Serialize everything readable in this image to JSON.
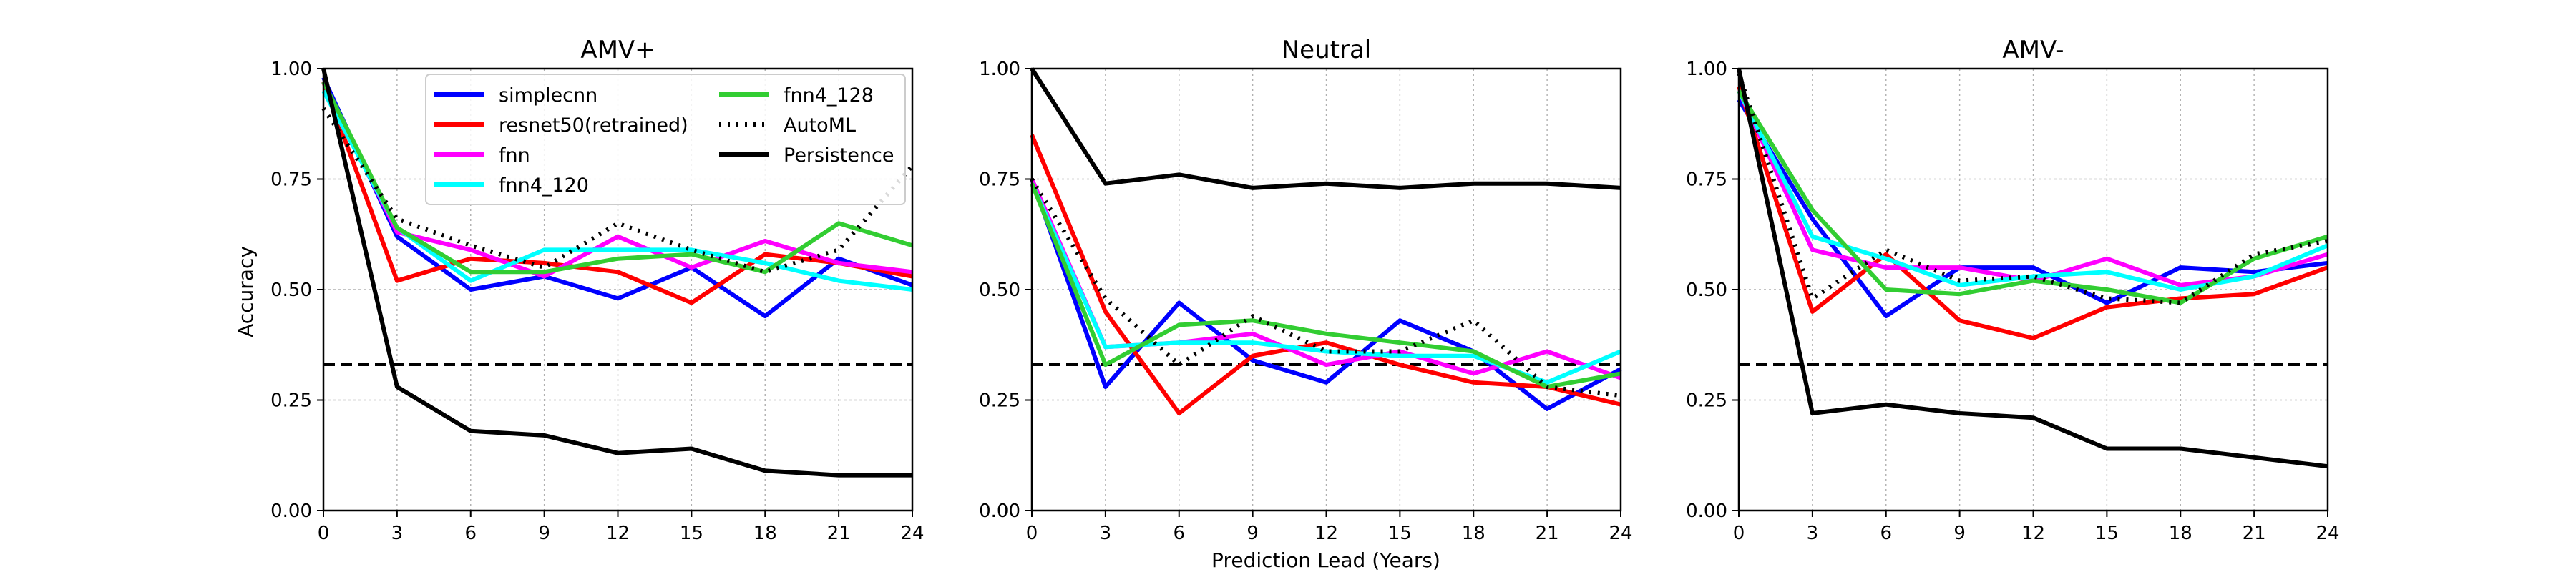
{
  "figure": {
    "xlabel": "Prediction Lead (Years)",
    "ylabel": "Accuracy"
  },
  "legend": {
    "entries": [
      "simplecnn",
      "resnet50(retrained)",
      "fnn",
      "fnn4_120",
      "fnn4_128",
      "AutoML",
      "Persistence"
    ]
  },
  "styles": {
    "simplecnn": {
      "color": "#0000ff",
      "dash": "solid"
    },
    "resnet50(retrained)": {
      "color": "#ff0000",
      "dash": "solid"
    },
    "fnn": {
      "color": "#ff00ff",
      "dash": "solid"
    },
    "fnn4_120": {
      "color": "#00ffff",
      "dash": "solid"
    },
    "fnn4_128": {
      "color": "#32cd32",
      "dash": "solid"
    },
    "AutoML": {
      "color": "#000000",
      "dash": "dotted"
    },
    "Persistence": {
      "color": "#000000",
      "dash": "solid"
    },
    "chance_line": {
      "color": "#000000",
      "dash": "dashed"
    }
  },
  "chart_data": [
    {
      "type": "line",
      "title": "AMV+",
      "xlabel": "",
      "ylabel": "Accuracy",
      "x": [
        0,
        3,
        6,
        9,
        12,
        15,
        18,
        21,
        24
      ],
      "xlim": [
        0,
        24
      ],
      "ylim": [
        0,
        1
      ],
      "xticks": [
        "0",
        "3",
        "6",
        "9",
        "12",
        "15",
        "18",
        "21",
        "24"
      ],
      "yticks": [
        "0.00",
        "0.25",
        "0.50",
        "0.75",
        "1.00"
      ],
      "grid": true,
      "legend_position": "top-center",
      "chance_level": 0.33,
      "series": [
        {
          "name": "simplecnn",
          "values": [
            0.98,
            0.62,
            0.5,
            0.53,
            0.48,
            0.55,
            0.44,
            0.57,
            0.51
          ]
        },
        {
          "name": "resnet50(retrained)",
          "values": [
            0.97,
            0.52,
            0.57,
            0.56,
            0.54,
            0.47,
            0.58,
            0.56,
            0.53
          ]
        },
        {
          "name": "fnn",
          "values": [
            0.97,
            0.63,
            0.59,
            0.53,
            0.62,
            0.55,
            0.61,
            0.56,
            0.54
          ]
        },
        {
          "name": "fnn4_120",
          "values": [
            0.95,
            0.64,
            0.52,
            0.59,
            0.59,
            0.59,
            0.56,
            0.52,
            0.5
          ]
        },
        {
          "name": "fnn4_128",
          "values": [
            0.97,
            0.64,
            0.54,
            0.54,
            0.57,
            0.58,
            0.54,
            0.65,
            0.6
          ]
        },
        {
          "name": "AutoML",
          "values": [
            0.91,
            0.66,
            0.6,
            0.55,
            0.65,
            0.59,
            0.54,
            0.59,
            0.78
          ]
        },
        {
          "name": "Persistence",
          "values": [
            1.0,
            0.28,
            0.18,
            0.17,
            0.13,
            0.14,
            0.09,
            0.08,
            0.08
          ]
        }
      ]
    },
    {
      "type": "line",
      "title": "Neutral",
      "xlabel": "Prediction Lead (Years)",
      "ylabel": "",
      "x": [
        0,
        3,
        6,
        9,
        12,
        15,
        18,
        21,
        24
      ],
      "xlim": [
        0,
        24
      ],
      "ylim": [
        0,
        1
      ],
      "xticks": [
        "0",
        "3",
        "6",
        "9",
        "12",
        "15",
        "18",
        "21",
        "24"
      ],
      "yticks": [
        "0.00",
        "0.25",
        "0.50",
        "0.75",
        "1.00"
      ],
      "grid": true,
      "chance_level": 0.33,
      "series": [
        {
          "name": "simplecnn",
          "values": [
            0.75,
            0.28,
            0.47,
            0.34,
            0.29,
            0.43,
            0.36,
            0.23,
            0.32
          ]
        },
        {
          "name": "resnet50(retrained)",
          "values": [
            0.85,
            0.45,
            0.22,
            0.35,
            0.38,
            0.33,
            0.29,
            0.28,
            0.24
          ]
        },
        {
          "name": "fnn",
          "values": [
            0.75,
            0.37,
            0.38,
            0.4,
            0.33,
            0.36,
            0.31,
            0.36,
            0.3
          ]
        },
        {
          "name": "fnn4_120",
          "values": [
            0.74,
            0.37,
            0.38,
            0.38,
            0.36,
            0.35,
            0.35,
            0.29,
            0.36
          ]
        },
        {
          "name": "fnn4_128",
          "values": [
            0.74,
            0.33,
            0.42,
            0.43,
            0.4,
            0.38,
            0.36,
            0.28,
            0.31
          ]
        },
        {
          "name": "AutoML",
          "values": [
            0.75,
            0.48,
            0.33,
            0.44,
            0.36,
            0.36,
            0.43,
            0.28,
            0.26
          ]
        },
        {
          "name": "Persistence",
          "values": [
            1.0,
            0.74,
            0.76,
            0.73,
            0.74,
            0.73,
            0.74,
            0.74,
            0.73
          ]
        }
      ]
    },
    {
      "type": "line",
      "title": "AMV-",
      "xlabel": "",
      "ylabel": "",
      "x": [
        0,
        3,
        6,
        9,
        12,
        15,
        18,
        21,
        24
      ],
      "xlim": [
        0,
        24
      ],
      "ylim": [
        0,
        1
      ],
      "xticks": [
        "0",
        "3",
        "6",
        "9",
        "12",
        "15",
        "18",
        "21",
        "24"
      ],
      "yticks": [
        "0.00",
        "0.25",
        "0.50",
        "0.75",
        "1.00"
      ],
      "grid": true,
      "chance_level": 0.33,
      "series": [
        {
          "name": "simplecnn",
          "values": [
            0.93,
            0.66,
            0.44,
            0.55,
            0.55,
            0.47,
            0.55,
            0.54,
            0.56
          ]
        },
        {
          "name": "resnet50(retrained)",
          "values": [
            0.96,
            0.45,
            0.58,
            0.43,
            0.39,
            0.46,
            0.48,
            0.49,
            0.55
          ]
        },
        {
          "name": "fnn",
          "values": [
            0.95,
            0.59,
            0.55,
            0.55,
            0.52,
            0.57,
            0.51,
            0.53,
            0.58
          ]
        },
        {
          "name": "fnn4_120",
          "values": [
            0.95,
            0.62,
            0.57,
            0.51,
            0.53,
            0.54,
            0.5,
            0.53,
            0.6
          ]
        },
        {
          "name": "fnn4_128",
          "values": [
            0.95,
            0.68,
            0.5,
            0.49,
            0.52,
            0.5,
            0.47,
            0.57,
            0.62
          ]
        },
        {
          "name": "AutoML",
          "values": [
            0.99,
            0.48,
            0.59,
            0.52,
            0.53,
            0.48,
            0.47,
            0.58,
            0.61
          ]
        },
        {
          "name": "Persistence",
          "values": [
            1.0,
            0.22,
            0.24,
            0.22,
            0.21,
            0.14,
            0.14,
            0.12,
            0.1
          ]
        }
      ]
    }
  ]
}
